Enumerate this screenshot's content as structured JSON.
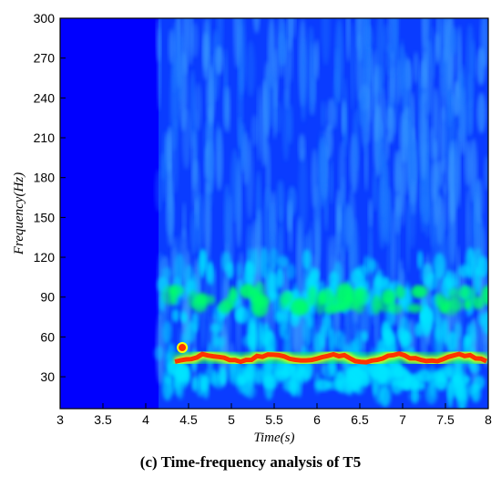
{
  "caption": "(c) Time-frequency analysis of T5",
  "chart_data": {
    "type": "heatmap",
    "title": "",
    "xlabel": "Time(s)",
    "ylabel": "Frequency(Hz)",
    "xlim": [
      3,
      8
    ],
    "ylim": [
      6,
      300
    ],
    "x_ticks": [
      3,
      3.5,
      4,
      4.5,
      5,
      5.5,
      6,
      6.5,
      7,
      7.5,
      8
    ],
    "x_tick_labels": [
      "3",
      "3.5",
      "4",
      "4.5",
      "5",
      "5.5",
      "6",
      "6.5",
      "7",
      "7.5",
      "8"
    ],
    "y_ticks": [
      30,
      60,
      90,
      120,
      150,
      180,
      210,
      240,
      270,
      300
    ],
    "y_tick_labels": [
      "30",
      "60",
      "90",
      "120",
      "150",
      "180",
      "210",
      "240",
      "270",
      "300"
    ],
    "colormap": [
      "#0000ff",
      "#1e78ff",
      "#00e5ff",
      "#00ff66",
      "#ffff00",
      "#ff3300",
      "#cc0000"
    ],
    "signal_onset_time": 4.15,
    "dominant_band": {
      "frequency": 44,
      "intensity": 1.0
    },
    "secondary_bands": [
      {
        "frequency": 88,
        "intensity": 0.55
      },
      {
        "frequency": 30,
        "intensity": 0.4
      }
    ]
  }
}
